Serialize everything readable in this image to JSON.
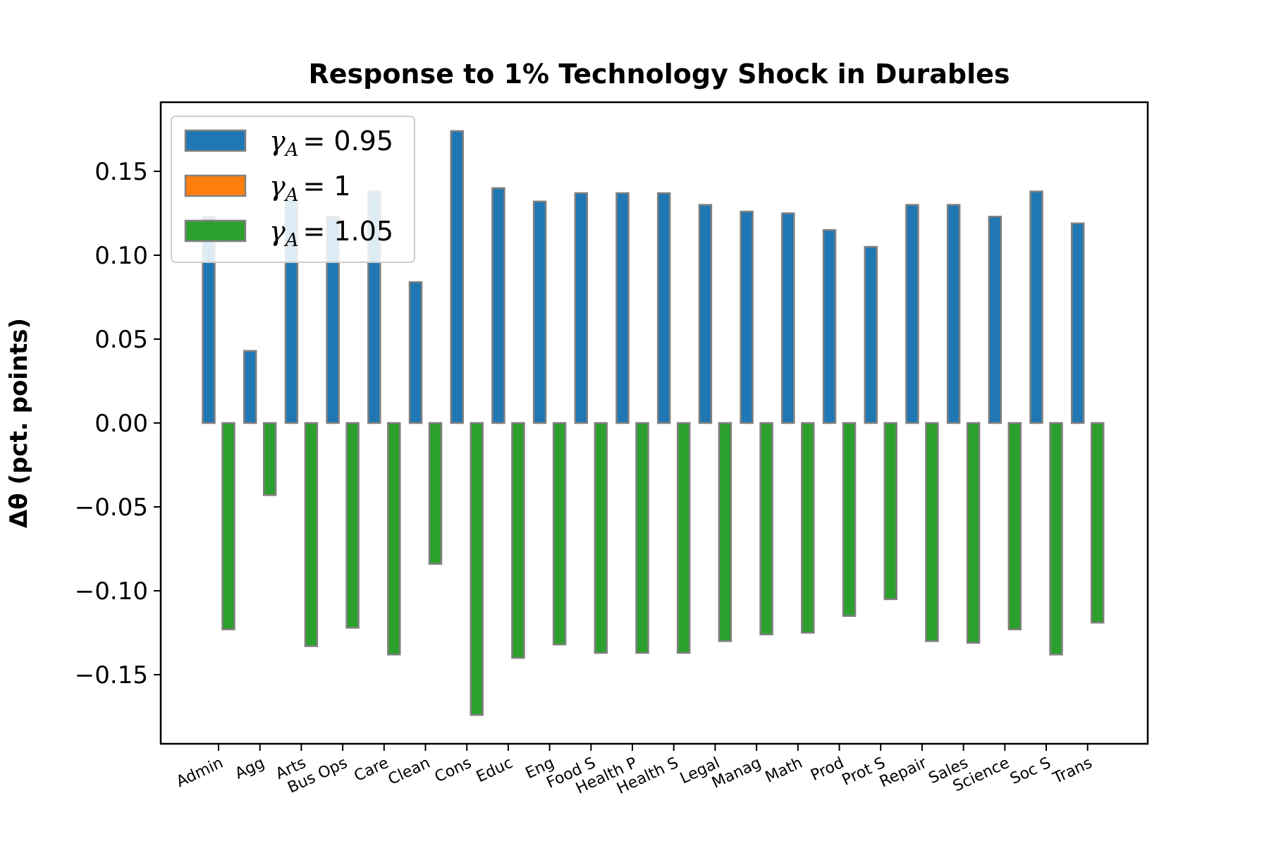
{
  "chart_data": {
    "type": "bar",
    "title": "Response to 1% Technology Shock in Durables",
    "ylabel": "Δθ  (pct. points)",
    "ylim": [
      -0.19,
      0.19
    ],
    "yticks": [
      0.15,
      0.1,
      0.05,
      0.0,
      -0.05,
      -0.1,
      -0.15
    ],
    "ytick_labels": [
      "0.15",
      "0.10",
      "0.05",
      "0.00",
      "−0.05",
      "−0.10",
      "−0.15"
    ],
    "categories": [
      "Admin",
      "Agg",
      "Arts",
      "Bus Ops",
      "Care",
      "Clean",
      "Cons",
      "Educ",
      "Eng",
      "Food S",
      "Health P",
      "Health S",
      "Legal",
      "Manag",
      "Math",
      "Prod",
      "Prot S",
      "Repair",
      "Sales",
      "Science",
      "Soc S",
      "Trans"
    ],
    "series": [
      {
        "name": "γA = 0.95",
        "legend_label": "= 0.95",
        "color": "#1f77b4",
        "values": [
          0.123,
          0.043,
          0.133,
          0.123,
          0.138,
          0.084,
          0.174,
          0.14,
          0.132,
          0.137,
          0.137,
          0.137,
          0.13,
          0.126,
          0.125,
          0.115,
          0.105,
          0.13,
          0.13,
          0.123,
          0.138,
          0.119
        ]
      },
      {
        "name": "γA = 1",
        "legend_label": "= 1",
        "color": "#ff7f0e",
        "values": [
          0,
          0,
          0,
          0,
          0,
          0,
          0,
          0,
          0,
          0,
          0,
          0,
          0,
          0,
          0,
          0,
          0,
          0,
          0,
          0,
          0,
          0
        ]
      },
      {
        "name": "γA = 1.05",
        "legend_label": "= 1.05",
        "color": "#2ca02c",
        "values": [
          -0.123,
          -0.043,
          -0.133,
          -0.122,
          -0.138,
          -0.084,
          -0.174,
          -0.14,
          -0.132,
          -0.137,
          -0.137,
          -0.137,
          -0.13,
          -0.126,
          -0.125,
          -0.115,
          -0.105,
          -0.13,
          -0.131,
          -0.123,
          -0.138,
          -0.119
        ]
      }
    ],
    "legend_symbol": "γ",
    "legend_subscript": "A",
    "legend_position": "top-left",
    "edge_color": "#808080",
    "grid": false
  }
}
